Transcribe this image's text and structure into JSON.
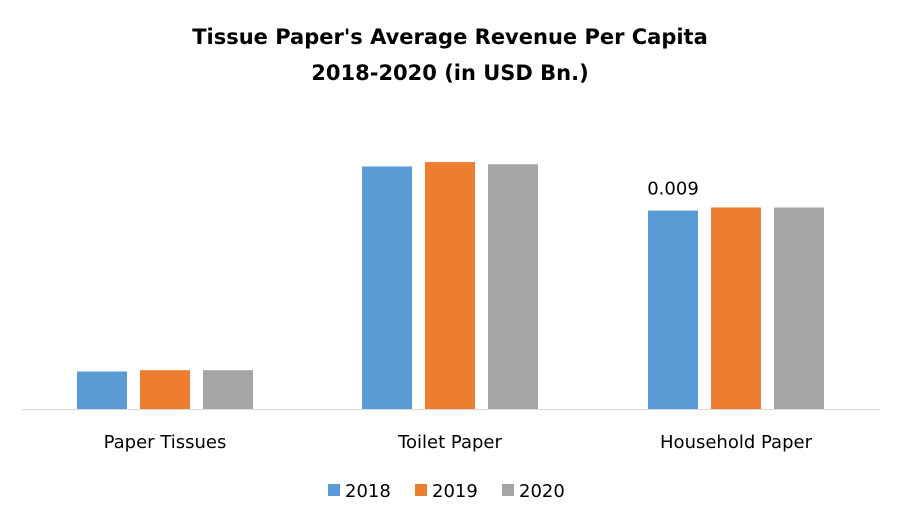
{
  "chart_data": {
    "type": "bar",
    "title_lines": [
      "Tissue Paper's Average Revenue Per Capita",
      "2018-2020 (in USD Bn.)"
    ],
    "xlabel": "",
    "ylabel": "",
    "categories": [
      "Paper Tissues",
      "Toilet Paper",
      "Household Paper"
    ],
    "series": [
      {
        "name": "2018",
        "color": "#5B9BD5",
        "values": [
          0.0017,
          0.011,
          0.009
        ]
      },
      {
        "name": "2019",
        "color": "#ED7D31",
        "values": [
          0.00176,
          0.0112,
          0.00914
        ]
      },
      {
        "name": "2020",
        "color": "#A5A5A5",
        "values": [
          0.00176,
          0.0111,
          0.00914
        ]
      }
    ],
    "data_labels": [
      {
        "category": "Household Paper",
        "series": "2018",
        "text": "0.009"
      }
    ],
    "ylim": [
      0,
      0.0122
    ],
    "grid": false,
    "y_axis_visible": false,
    "legend_position": "bottom"
  }
}
